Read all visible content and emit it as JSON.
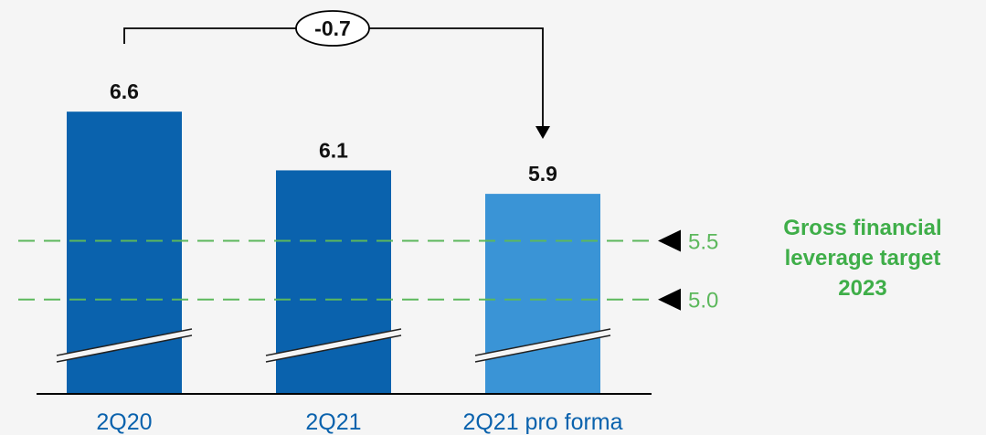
{
  "chart_data": {
    "type": "bar",
    "axis_break": true,
    "categories": [
      "2Q20",
      "2Q21",
      "2Q21 pro forma"
    ],
    "values": [
      6.6,
      6.1,
      5.9
    ],
    "value_labels": [
      "6.6",
      "6.1",
      "5.9"
    ],
    "ylim": [
      4.2,
      6.8
    ],
    "colors": {
      "bars": [
        "#0a62ad",
        "#0a62ad",
        "#3a94d6"
      ],
      "target": "#5cb85c",
      "category_text": "#0a62ad",
      "target_title": "#3fae49",
      "axis": "#000000"
    },
    "targets": [
      {
        "value": 5.5,
        "label": "5.5"
      },
      {
        "value": 5.0,
        "label": "5.0"
      }
    ],
    "target_title": [
      "Gross financial",
      "leverage target",
      "2023"
    ],
    "delta": {
      "label": "-0.7",
      "from": "2Q20",
      "to": "2Q21 pro forma"
    }
  }
}
